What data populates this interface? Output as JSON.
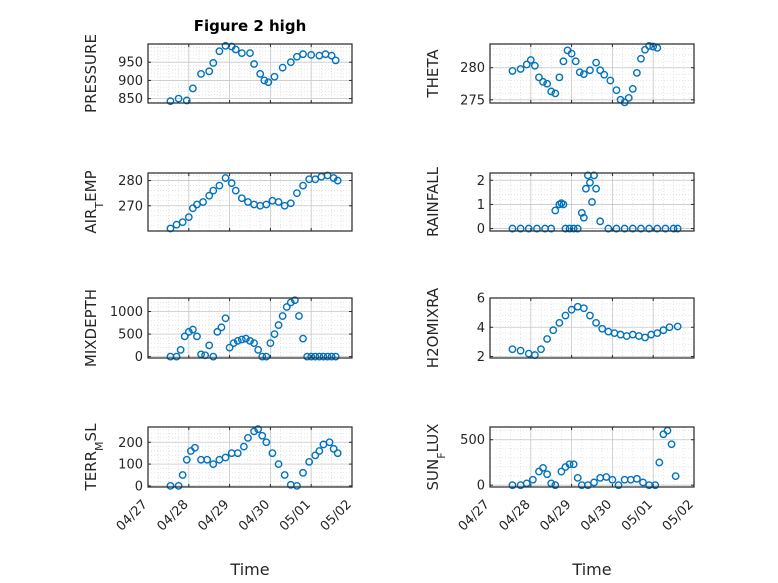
{
  "chart_data": [
    {
      "type": "scatter",
      "title": "Figure 2 high",
      "ylabel": "PRESSURE",
      "xlabel": "",
      "xticks": [],
      "ylim": [
        838,
        1000
      ],
      "yticks": [
        850,
        900,
        950
      ],
      "y_tick_labels": [
        "850",
        "900",
        "950"
      ],
      "x_range": [
        0,
        5
      ],
      "grid": true,
      "marker": "open-circle",
      "color": "#0072BD",
      "x": [
        0.55,
        0.75,
        0.95,
        1.1,
        1.3,
        1.5,
        1.6,
        1.75,
        1.9,
        2.05,
        2.15,
        2.3,
        2.5,
        2.6,
        2.75,
        2.85,
        2.95,
        3.1,
        3.3,
        3.5,
        3.65,
        3.8,
        4.0,
        4.2,
        4.35,
        4.5,
        4.6
      ],
      "y": [
        843,
        850,
        845,
        878,
        918,
        925,
        948,
        980,
        995,
        993,
        985,
        975,
        975,
        945,
        918,
        900,
        895,
        910,
        935,
        950,
        965,
        972,
        970,
        968,
        972,
        968,
        955
      ]
    },
    {
      "type": "scatter",
      "ylabel": "THETA",
      "xlabel": "",
      "xticks": [],
      "ylim": [
        274.5,
        283.7
      ],
      "yticks": [
        275,
        280
      ],
      "y_tick_labels": [
        "275",
        "280"
      ],
      "x_range": [
        0,
        5
      ],
      "grid": true,
      "marker": "open-circle",
      "color": "#0072BD",
      "x": [
        0.55,
        0.75,
        0.9,
        1.0,
        1.1,
        1.2,
        1.3,
        1.4,
        1.5,
        1.6,
        1.7,
        1.8,
        1.9,
        2.0,
        2.1,
        2.2,
        2.3,
        2.45,
        2.6,
        2.7,
        2.8,
        2.95,
        3.1,
        3.2,
        3.3,
        3.4,
        3.5,
        3.6,
        3.7,
        3.8,
        3.9,
        4.0,
        4.1
      ],
      "y": [
        279.5,
        279.8,
        280.5,
        281.2,
        280.3,
        278.5,
        277.8,
        277.5,
        276.3,
        276.0,
        278.5,
        281.0,
        282.7,
        282.2,
        281.0,
        279.3,
        279.0,
        279.6,
        280.8,
        279.6,
        278.9,
        278.0,
        276.5,
        275.0,
        274.6,
        275.3,
        276.7,
        279.2,
        281.4,
        282.8,
        283.4,
        283.3,
        283.1
      ]
    },
    {
      "type": "scatter",
      "ylabel": "AIR_TEMP",
      "xlabel": "",
      "xticks": [],
      "ylim": [
        260,
        283
      ],
      "yticks": [
        270,
        280
      ],
      "y_tick_labels": [
        "270",
        "280"
      ],
      "x_range": [
        0,
        5
      ],
      "grid": true,
      "marker": "open-circle",
      "color": "#0072BD",
      "x": [
        0.55,
        0.7,
        0.85,
        1.0,
        1.1,
        1.2,
        1.35,
        1.5,
        1.6,
        1.75,
        1.9,
        2.05,
        2.15,
        2.3,
        2.45,
        2.6,
        2.75,
        2.9,
        3.05,
        3.2,
        3.35,
        3.5,
        3.65,
        3.8,
        3.95,
        4.1,
        4.25,
        4.4,
        4.55,
        4.65
      ],
      "y": [
        261,
        262.5,
        263.5,
        265.5,
        269,
        270.5,
        271.5,
        274,
        276,
        278,
        281,
        279,
        276,
        273,
        271.5,
        270.5,
        270,
        270.5,
        272,
        271.5,
        270,
        271,
        275,
        278,
        280.5,
        280.5,
        281.5,
        282,
        281,
        280
      ]
    },
    {
      "type": "scatter",
      "ylabel": "RAINFALL",
      "xlabel": "",
      "xticks": [],
      "ylim": [
        -0.1,
        2.3
      ],
      "yticks": [
        0,
        1,
        2
      ],
      "y_tick_labels": [
        "0",
        "1",
        "2"
      ],
      "x_range": [
        0,
        5
      ],
      "grid": true,
      "marker": "open-circle",
      "color": "#0072BD",
      "x": [
        0.55,
        0.75,
        0.95,
        1.15,
        1.35,
        1.5,
        1.6,
        1.7,
        1.75,
        1.8,
        1.85,
        1.95,
        2.05,
        2.15,
        2.25,
        2.3,
        2.35,
        2.4,
        2.45,
        2.5,
        2.55,
        2.6,
        2.7,
        2.9,
        3.1,
        3.3,
        3.5,
        3.7,
        3.9,
        4.1,
        4.3,
        4.5,
        4.6
      ],
      "y": [
        0,
        0,
        0,
        0,
        0,
        0,
        0.75,
        1.0,
        1.05,
        1.0,
        0,
        0,
        0,
        0,
        0.65,
        0.45,
        1.65,
        2.2,
        1.9,
        1.1,
        2.2,
        1.65,
        0.3,
        0,
        0,
        0,
        0,
        0,
        0,
        0,
        0,
        0,
        0
      ]
    },
    {
      "type": "scatter",
      "ylabel": "MIXDEPTH",
      "xlabel": "",
      "xticks": [],
      "ylim": [
        -30,
        1300
      ],
      "yticks": [
        0,
        500,
        1000
      ],
      "y_tick_labels": [
        "0",
        "500",
        "1000"
      ],
      "x_range": [
        0,
        5
      ],
      "grid": true,
      "marker": "open-circle",
      "color": "#0072BD",
      "x": [
        0.55,
        0.7,
        0.8,
        0.9,
        1.0,
        1.1,
        1.2,
        1.3,
        1.4,
        1.5,
        1.6,
        1.7,
        1.8,
        1.9,
        2.0,
        2.1,
        2.2,
        2.3,
        2.4,
        2.5,
        2.6,
        2.7,
        2.8,
        2.9,
        3.0,
        3.1,
        3.2,
        3.3,
        3.4,
        3.5,
        3.6,
        3.7,
        3.8,
        3.9,
        4.0,
        4.1,
        4.2,
        4.3,
        4.4,
        4.5,
        4.6
      ],
      "y": [
        0,
        0,
        150,
        450,
        550,
        600,
        450,
        50,
        30,
        250,
        0,
        550,
        650,
        850,
        200,
        300,
        350,
        380,
        400,
        350,
        300,
        150,
        0,
        0,
        300,
        500,
        700,
        900,
        1100,
        1200,
        1250,
        900,
        400,
        0,
        0,
        0,
        0,
        0,
        0,
        0,
        0
      ]
    },
    {
      "type": "scatter",
      "ylabel": "H2OMIXRA",
      "xlabel": "",
      "xticks": [],
      "ylim": [
        1.9,
        6
      ],
      "yticks": [
        2,
        4,
        6
      ],
      "y_tick_labels": [
        "2",
        "4",
        "6"
      ],
      "x_range": [
        0,
        5
      ],
      "grid": true,
      "marker": "open-circle",
      "color": "#0072BD",
      "x": [
        0.55,
        0.75,
        0.95,
        1.1,
        1.25,
        1.4,
        1.55,
        1.7,
        1.85,
        2.0,
        2.15,
        2.3,
        2.45,
        2.6,
        2.75,
        2.9,
        3.05,
        3.2,
        3.35,
        3.5,
        3.65,
        3.8,
        3.95,
        4.1,
        4.25,
        4.4,
        4.6
      ],
      "y": [
        2.5,
        2.4,
        2.2,
        2.1,
        2.5,
        3.2,
        3.8,
        4.3,
        4.8,
        5.2,
        5.4,
        5.3,
        4.8,
        4.3,
        3.9,
        3.7,
        3.6,
        3.5,
        3.4,
        3.5,
        3.4,
        3.3,
        3.5,
        3.6,
        3.8,
        4.0,
        4.05
      ]
    },
    {
      "type": "scatter",
      "ylabel": "TERR_MSL",
      "xlabel": "Time",
      "xticks": [
        0,
        1,
        2,
        3,
        4,
        5
      ],
      "x_tick_labels": [
        "04/27",
        "04/28",
        "04/29",
        "04/30",
        "05/01",
        "05/02"
      ],
      "ylim": [
        -5,
        270
      ],
      "yticks": [
        0,
        100,
        200
      ],
      "y_tick_labels": [
        "0",
        "100",
        "200"
      ],
      "x_range": [
        0,
        5
      ],
      "grid": true,
      "marker": "open-circle",
      "color": "#0072BD",
      "x": [
        0.55,
        0.75,
        0.85,
        0.95,
        1.05,
        1.15,
        1.3,
        1.45,
        1.6,
        1.75,
        1.9,
        2.05,
        2.2,
        2.35,
        2.45,
        2.6,
        2.7,
        2.8,
        2.9,
        3.05,
        3.2,
        3.35,
        3.5,
        3.65,
        3.8,
        3.95,
        4.1,
        4.2,
        4.3,
        4.45,
        4.55,
        4.65
      ],
      "y": [
        0,
        0,
        50,
        120,
        160,
        175,
        120,
        120,
        100,
        120,
        130,
        150,
        150,
        180,
        220,
        250,
        260,
        230,
        200,
        150,
        100,
        50,
        5,
        0,
        60,
        110,
        140,
        160,
        190,
        200,
        170,
        150
      ]
    },
    {
      "type": "scatter",
      "ylabel": "SUN_FLUX",
      "xlabel": "Time",
      "xticks": [
        0,
        1,
        2,
        3,
        4,
        5
      ],
      "x_tick_labels": [
        "04/27",
        "04/28",
        "04/29",
        "04/30",
        "05/01",
        "05/02"
      ],
      "ylim": [
        -20,
        640
      ],
      "yticks": [
        0,
        500
      ],
      "y_tick_labels": [
        "0",
        "500"
      ],
      "x_range": [
        0,
        5
      ],
      "grid": true,
      "marker": "open-circle",
      "color": "#0072BD",
      "x": [
        0.55,
        0.75,
        0.9,
        1.05,
        1.2,
        1.3,
        1.4,
        1.5,
        1.6,
        1.75,
        1.85,
        1.95,
        2.05,
        2.15,
        2.25,
        2.4,
        2.55,
        2.7,
        2.85,
        3.0,
        3.15,
        3.3,
        3.45,
        3.6,
        3.75,
        3.9,
        4.05,
        4.15,
        4.25,
        4.35,
        4.45,
        4.55
      ],
      "y": [
        0,
        0,
        20,
        60,
        150,
        190,
        120,
        20,
        0,
        150,
        200,
        230,
        230,
        80,
        0,
        0,
        30,
        80,
        90,
        60,
        0,
        60,
        60,
        70,
        30,
        0,
        0,
        250,
        560,
        600,
        450,
        100
      ]
    }
  ]
}
